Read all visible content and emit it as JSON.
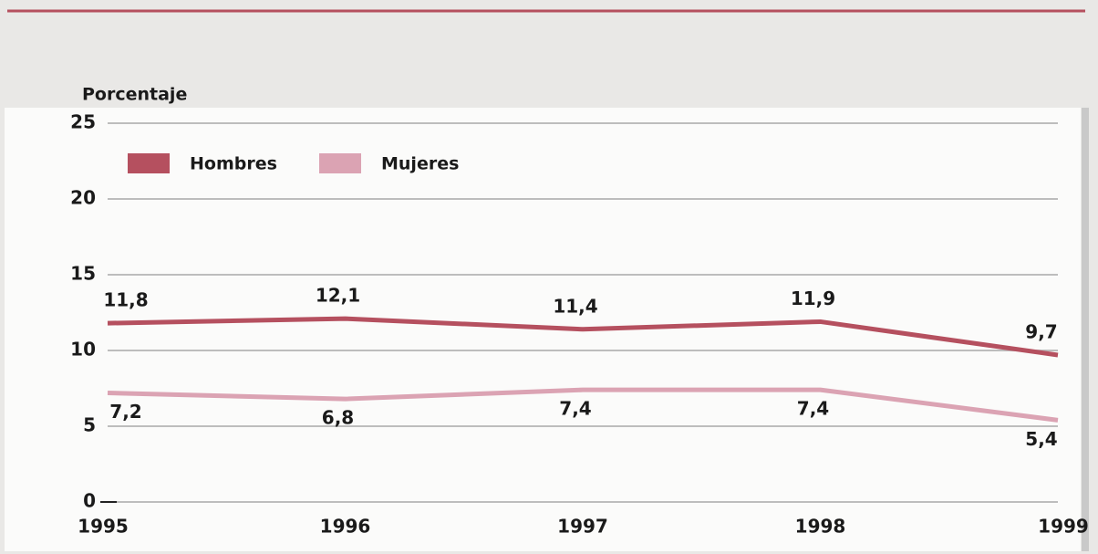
{
  "chart_data": {
    "type": "line",
    "y_label": "Porcentaje",
    "categories": [
      "1995",
      "1996",
      "1997",
      "1998",
      "1999"
    ],
    "series": [
      {
        "name": "Hombres",
        "color": "#b5505f",
        "values": [
          11.8,
          12.1,
          11.4,
          11.9,
          9.7
        ],
        "value_labels": [
          "11,8",
          "12,1",
          "11,4",
          "11,9",
          "9,7"
        ]
      },
      {
        "name": "Mujeres",
        "color": "#dba3b3",
        "values": [
          7.2,
          6.8,
          7.4,
          7.4,
          5.4
        ],
        "value_labels": [
          "7,2",
          "6,8",
          "7,4",
          "7,4",
          "5,4"
        ]
      }
    ],
    "ylim": [
      0,
      25
    ],
    "yticks": [
      0,
      5,
      10,
      15,
      20,
      25
    ],
    "grid": true,
    "legend": "top-left"
  }
}
